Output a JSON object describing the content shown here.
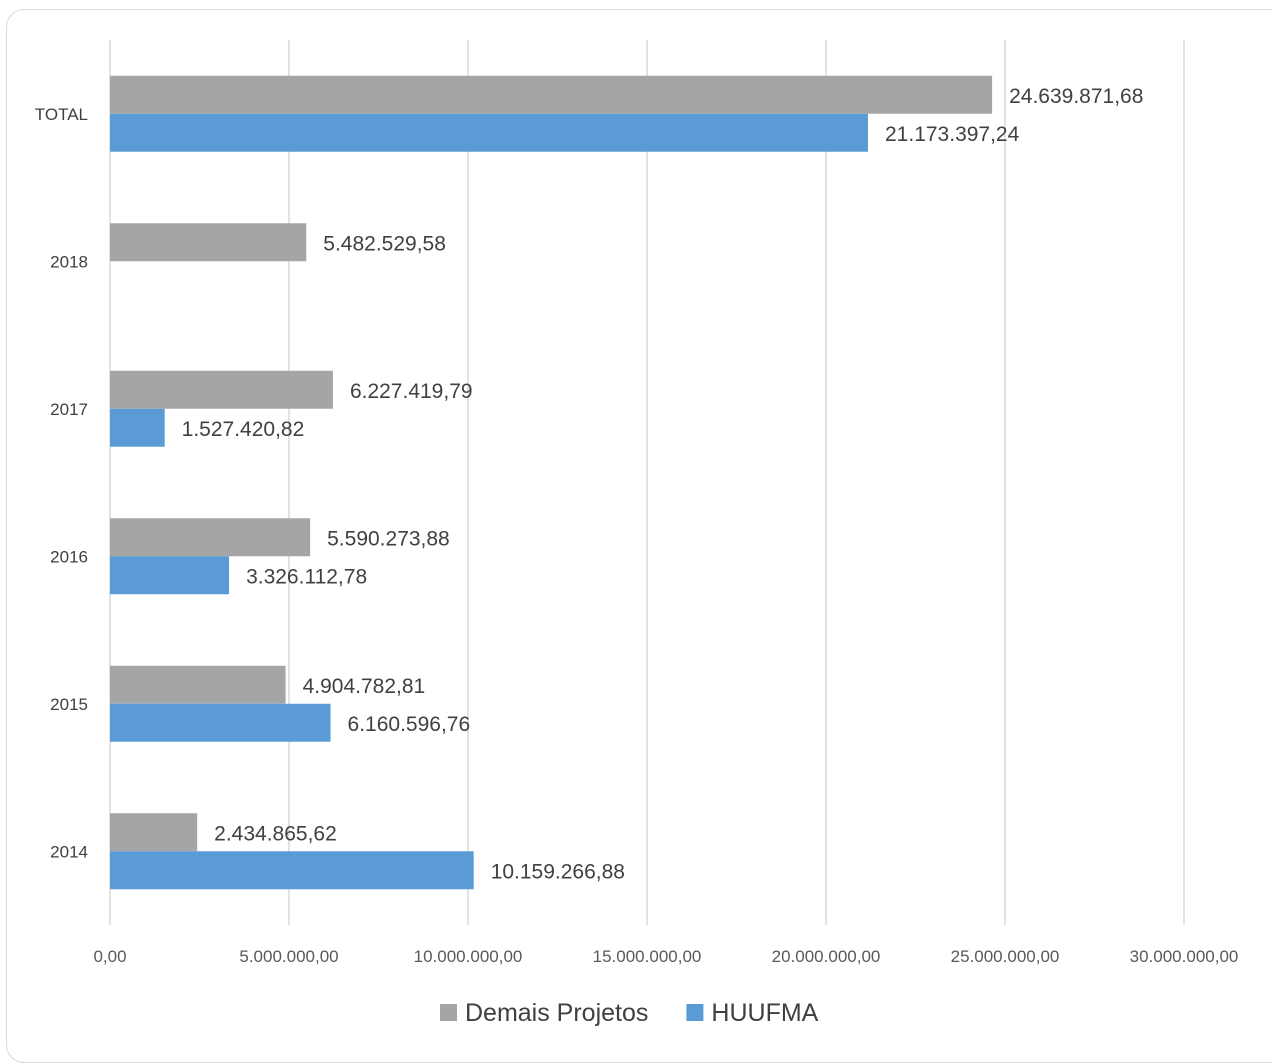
{
  "chart_data": {
    "type": "bar",
    "orientation": "horizontal",
    "categories": [
      "TOTAL",
      "2018",
      "2017",
      "2016",
      "2015",
      "2014"
    ],
    "series": [
      {
        "name": "Demais Projetos",
        "color": "#a5a5a5",
        "values": [
          24639871.68,
          5482529.58,
          6227419.79,
          5590273.88,
          4904782.81,
          2434865.62
        ],
        "labels": [
          "24.639.871,68",
          "5.482.529,58",
          "6.227.419,79",
          "5.590.273,88",
          "4.904.782,81",
          "2.434.865,62"
        ]
      },
      {
        "name": "HUUFMA",
        "color": "#5b9bd5",
        "values": [
          21173397.24,
          null,
          1527420.82,
          3326112.78,
          6160596.76,
          10159266.88
        ],
        "labels": [
          "21.173.397,24",
          "",
          "1.527.420,82",
          "3.326.112,78",
          "6.160.596,76",
          "10.159.266,88"
        ]
      }
    ],
    "xlim": [
      0,
      30000000
    ],
    "xticks": [
      0,
      5000000,
      10000000,
      15000000,
      20000000,
      25000000,
      30000000
    ],
    "xtick_labels": [
      "0,00",
      "5.000.000,00",
      "10.000.000,00",
      "15.000.000,00",
      "20.000.000,00",
      "25.000.000,00",
      "30.000.000,00"
    ],
    "grid": "vertical",
    "legend_position": "bottom",
    "title": "",
    "xlabel": "",
    "ylabel": ""
  }
}
